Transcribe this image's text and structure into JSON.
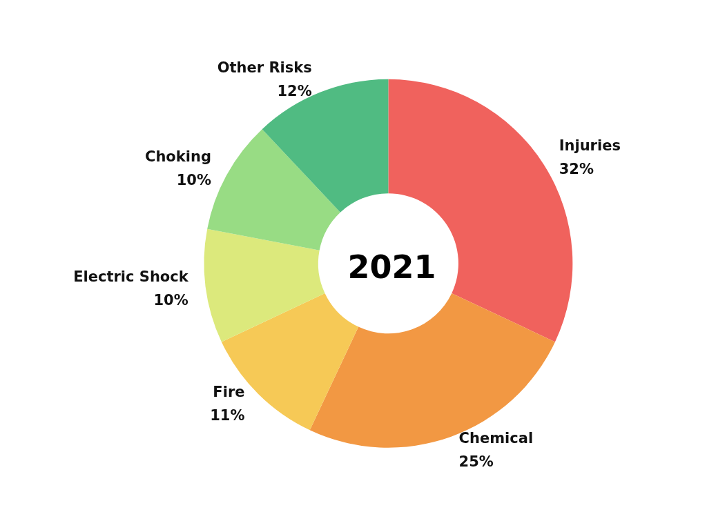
{
  "chart_data": {
    "type": "donut",
    "title": "2021",
    "categories": [
      "Injuries",
      "Chemical",
      "Fire",
      "Electric Shock",
      "Choking",
      "Other Risks"
    ],
    "values": [
      32,
      25,
      11,
      10,
      10,
      12
    ],
    "value_labels": [
      "32%",
      "25%",
      "11%",
      "10%",
      "10%",
      "12%"
    ],
    "colors": [
      "#f0625d",
      "#f29843",
      "#f6c956",
      "#dce97c",
      "#98dc84",
      "#50bb82"
    ]
  }
}
